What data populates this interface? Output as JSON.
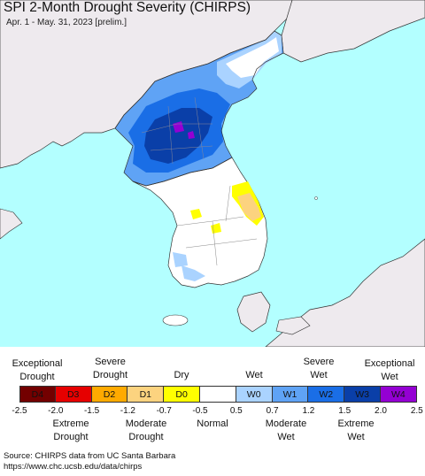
{
  "title": "SPI 2-Month Drought Severity (CHIRPS)",
  "subtitle": "Apr. 1 - May. 31, 2023 [prelim.]",
  "legend": {
    "top_labels": {
      "exceptional_drought": "Exceptional\nDrought",
      "severe_drought": "Severe\nDrought",
      "dry": "Dry",
      "wet": "Wet",
      "severe_wet": "Severe\nWet",
      "exceptional_wet": "Exceptional\nWet"
    },
    "bins": [
      {
        "code": "D4",
        "color": "#730000"
      },
      {
        "code": "D3",
        "color": "#e60000"
      },
      {
        "code": "D2",
        "color": "#ffaa00"
      },
      {
        "code": "D1",
        "color": "#fcd37f"
      },
      {
        "code": "D0",
        "color": "#ffff00"
      },
      {
        "code": "",
        "color": "#ffffff"
      },
      {
        "code": "W0",
        "color": "#aad3ff"
      },
      {
        "code": "W1",
        "color": "#5fa3f5"
      },
      {
        "code": "W2",
        "color": "#1a6ee6"
      },
      {
        "code": "W3",
        "color": "#0a3fa8"
      },
      {
        "code": "W4",
        "color": "#9400d3"
      }
    ],
    "ticks": [
      "-2.5",
      "-2.0",
      "-1.5",
      "-1.2",
      "-0.7",
      "-0.5",
      "0.5",
      "0.7",
      "1.2",
      "1.5",
      "2.0",
      "2.5"
    ],
    "bottom_labels": {
      "extreme_drought": "Extreme\nDrought",
      "moderate_drought": "Moderate\nDrought",
      "normal": "Normal",
      "moderate_wet": "Moderate\nWet",
      "extreme_wet": "Extreme\nWet"
    }
  },
  "source": {
    "line1": "Source: CHIRPS data from UC Santa Barbara",
    "line2": "https://www.chc.ucsb.edu/data/chirps"
  },
  "colors": {
    "sea": "#b3ffff",
    "outside_land": "#eeeaee",
    "normal_land": "#ffffff"
  }
}
